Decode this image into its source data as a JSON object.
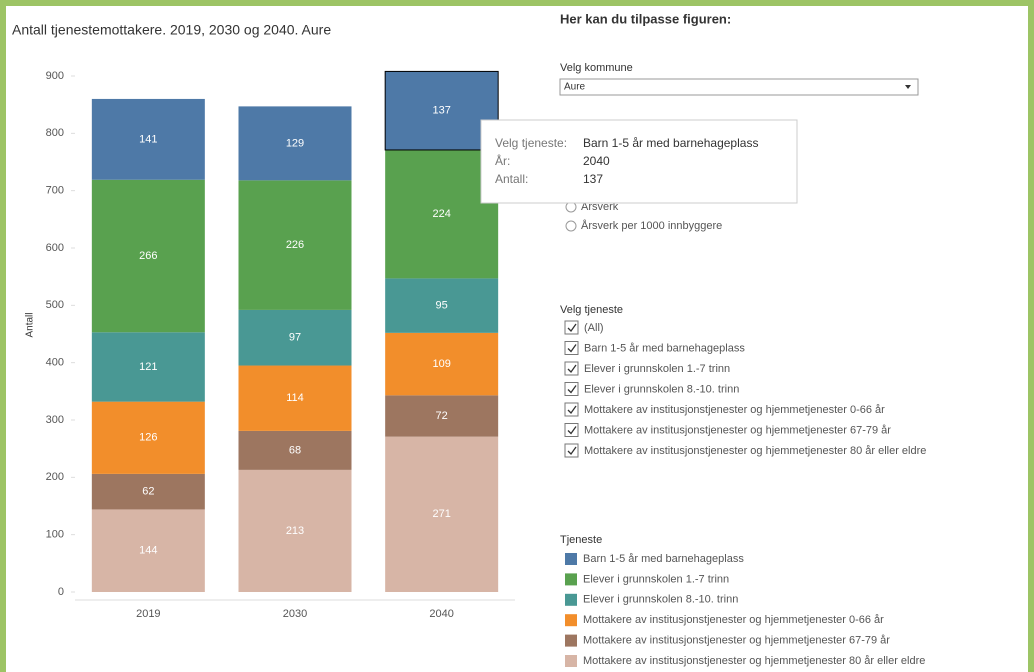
{
  "chart_data": {
    "type": "stacked_bar",
    "title": "Antall tjenestemottakere. 2019, 2030 og 2040. Aure",
    "y_label": "Antall",
    "categories": [
      "2019",
      "2030",
      "2040"
    ],
    "series": [
      {
        "name": "Barn 1-5 år med barnehageplass",
        "color": "#4e79a7",
        "values": [
          141,
          129,
          137
        ]
      },
      {
        "name": "Elever i grunnskolen 1.-7 trinn",
        "color": "#59a14f",
        "values": [
          266,
          226,
          224
        ]
      },
      {
        "name": "Elever i grunnskolen 8.-10. trinn",
        "color": "#499894",
        "values": [
          121,
          97,
          95
        ]
      },
      {
        "name": "Mottakere av institusjonstjenester og hjemmetjenester 0-66 år",
        "color": "#f28e2b",
        "values": [
          126,
          114,
          109
        ]
      },
      {
        "name": "Mottakere av institusjonstjenester og hjemmetjenester 67-79 år",
        "color": "#9d7660",
        "values": [
          62,
          68,
          72
        ]
      },
      {
        "name": "Mottakere av institusjonstjenester og hjemmetjenester 80 år eller eldre",
        "color": "#d7b5a6",
        "values": [
          144,
          213,
          271
        ]
      }
    ],
    "ylim": [
      0,
      900
    ],
    "yticks": [
      0,
      100,
      200,
      300,
      400,
      500,
      600,
      700,
      800,
      900
    ],
    "grid": false,
    "legend_title": "Tjeneste"
  },
  "tooltip": {
    "labels": [
      "Velg tjeneste:",
      "År:",
      "Antall:"
    ]
  },
  "panel": {
    "heading": "Her kan du tilpasse figuren:",
    "kommune_label": "Velg kommune",
    "kommune_value": "Aure",
    "radio_options": [
      "Årsverk",
      "Årsverk per 1000 innbyggere"
    ],
    "tjeneste_label": "Velg tjeneste",
    "all_label": "(All)"
  }
}
